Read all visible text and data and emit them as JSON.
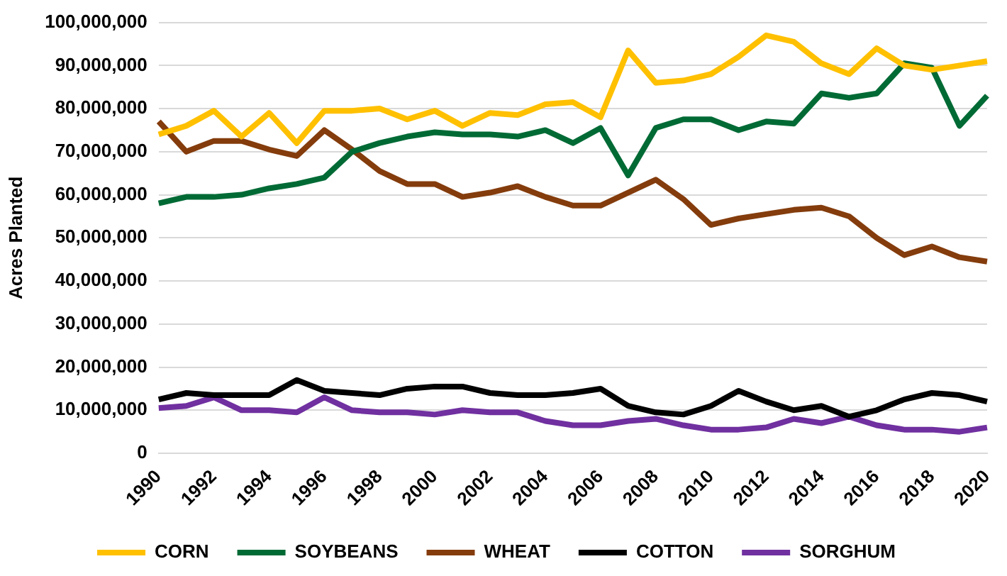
{
  "chart_data": {
    "type": "line",
    "ylabel": "Acres Planted",
    "categories": [
      "1990",
      null,
      "1992",
      null,
      "1994",
      null,
      "1996",
      null,
      "1998",
      null,
      "2000",
      null,
      "2002",
      null,
      "2004",
      null,
      "2006",
      null,
      "2008",
      null,
      "2010",
      null,
      "2012",
      null,
      "2014",
      null,
      "2016",
      null,
      "2018",
      null,
      "2020"
    ],
    "series": [
      {
        "name": "CORN",
        "color": "#ffc000",
        "values": [
          74000000,
          76000000,
          79500000,
          73500000,
          79000000,
          72000000,
          79500000,
          79500000,
          80000000,
          77500000,
          79500000,
          76000000,
          79000000,
          78500000,
          81000000,
          81500000,
          78000000,
          93500000,
          86000000,
          86500000,
          88000000,
          92000000,
          97000000,
          95500000,
          90500000,
          88000000,
          94000000,
          90000000,
          89000000,
          90000000,
          91000000
        ]
      },
      {
        "name": "SOYBEANS",
        "color": "#006a35",
        "values": [
          58000000,
          59500000,
          59500000,
          60000000,
          61500000,
          62500000,
          64000000,
          70000000,
          72000000,
          73500000,
          74500000,
          74000000,
          74000000,
          73500000,
          75000000,
          72000000,
          75500000,
          64500000,
          75500000,
          77500000,
          77500000,
          75000000,
          77000000,
          76500000,
          83500000,
          82500000,
          83500000,
          90500000,
          89500000,
          76000000,
          83000000
        ]
      },
      {
        "name": "WHEAT",
        "color": "#843c0c",
        "values": [
          77000000,
          70000000,
          72500000,
          72500000,
          70500000,
          69000000,
          75000000,
          70500000,
          65500000,
          62500000,
          62500000,
          59500000,
          60500000,
          62000000,
          59500000,
          57500000,
          57500000,
          60500000,
          63500000,
          59000000,
          53000000,
          54500000,
          55500000,
          56500000,
          57000000,
          55000000,
          50000000,
          46000000,
          48000000,
          45500000,
          44500000
        ]
      },
      {
        "name": "COTTON",
        "color": "#000000",
        "values": [
          12500000,
          14000000,
          13500000,
          13500000,
          13500000,
          17000000,
          14500000,
          14000000,
          13500000,
          15000000,
          15500000,
          15500000,
          14000000,
          13500000,
          13500000,
          14000000,
          15000000,
          11000000,
          9500000,
          9000000,
          11000000,
          14500000,
          12000000,
          10000000,
          11000000,
          8500000,
          10000000,
          12500000,
          14000000,
          13500000,
          12000000
        ]
      },
      {
        "name": "SORGHUM",
        "color": "#7030a0",
        "values": [
          10500000,
          11000000,
          13000000,
          10000000,
          10000000,
          9500000,
          13000000,
          10000000,
          9500000,
          9500000,
          9000000,
          10000000,
          9500000,
          9500000,
          7500000,
          6500000,
          6500000,
          7500000,
          8000000,
          6500000,
          5500000,
          5500000,
          6000000,
          8000000,
          7000000,
          8500000,
          6500000,
          5500000,
          5500000,
          5000000,
          6000000
        ]
      }
    ],
    "ylim": [
      0,
      100000000
    ],
    "yticks": [
      0,
      {
        "value": 10000000,
        "label": "10,000,000"
      },
      {
        "value": 20000000,
        "label": "20,000,000"
      },
      {
        "value": 30000000,
        "label": "30,000,000"
      },
      {
        "value": 40000000,
        "label": "40,000,000"
      },
      {
        "value": 50000000,
        "label": "50,000,000"
      },
      {
        "value": 60000000,
        "label": "60,000,000"
      },
      {
        "value": 70000000,
        "label": "70,000,000"
      },
      {
        "value": 80000000,
        "label": "80,000,000"
      },
      {
        "value": 90000000,
        "label": "90,000,000"
      },
      {
        "value": 100000000,
        "label": "100,000,000"
      }
    ],
    "grid": "y",
    "legend": "bottom",
    "marker": "none",
    "line_style": "solid"
  }
}
